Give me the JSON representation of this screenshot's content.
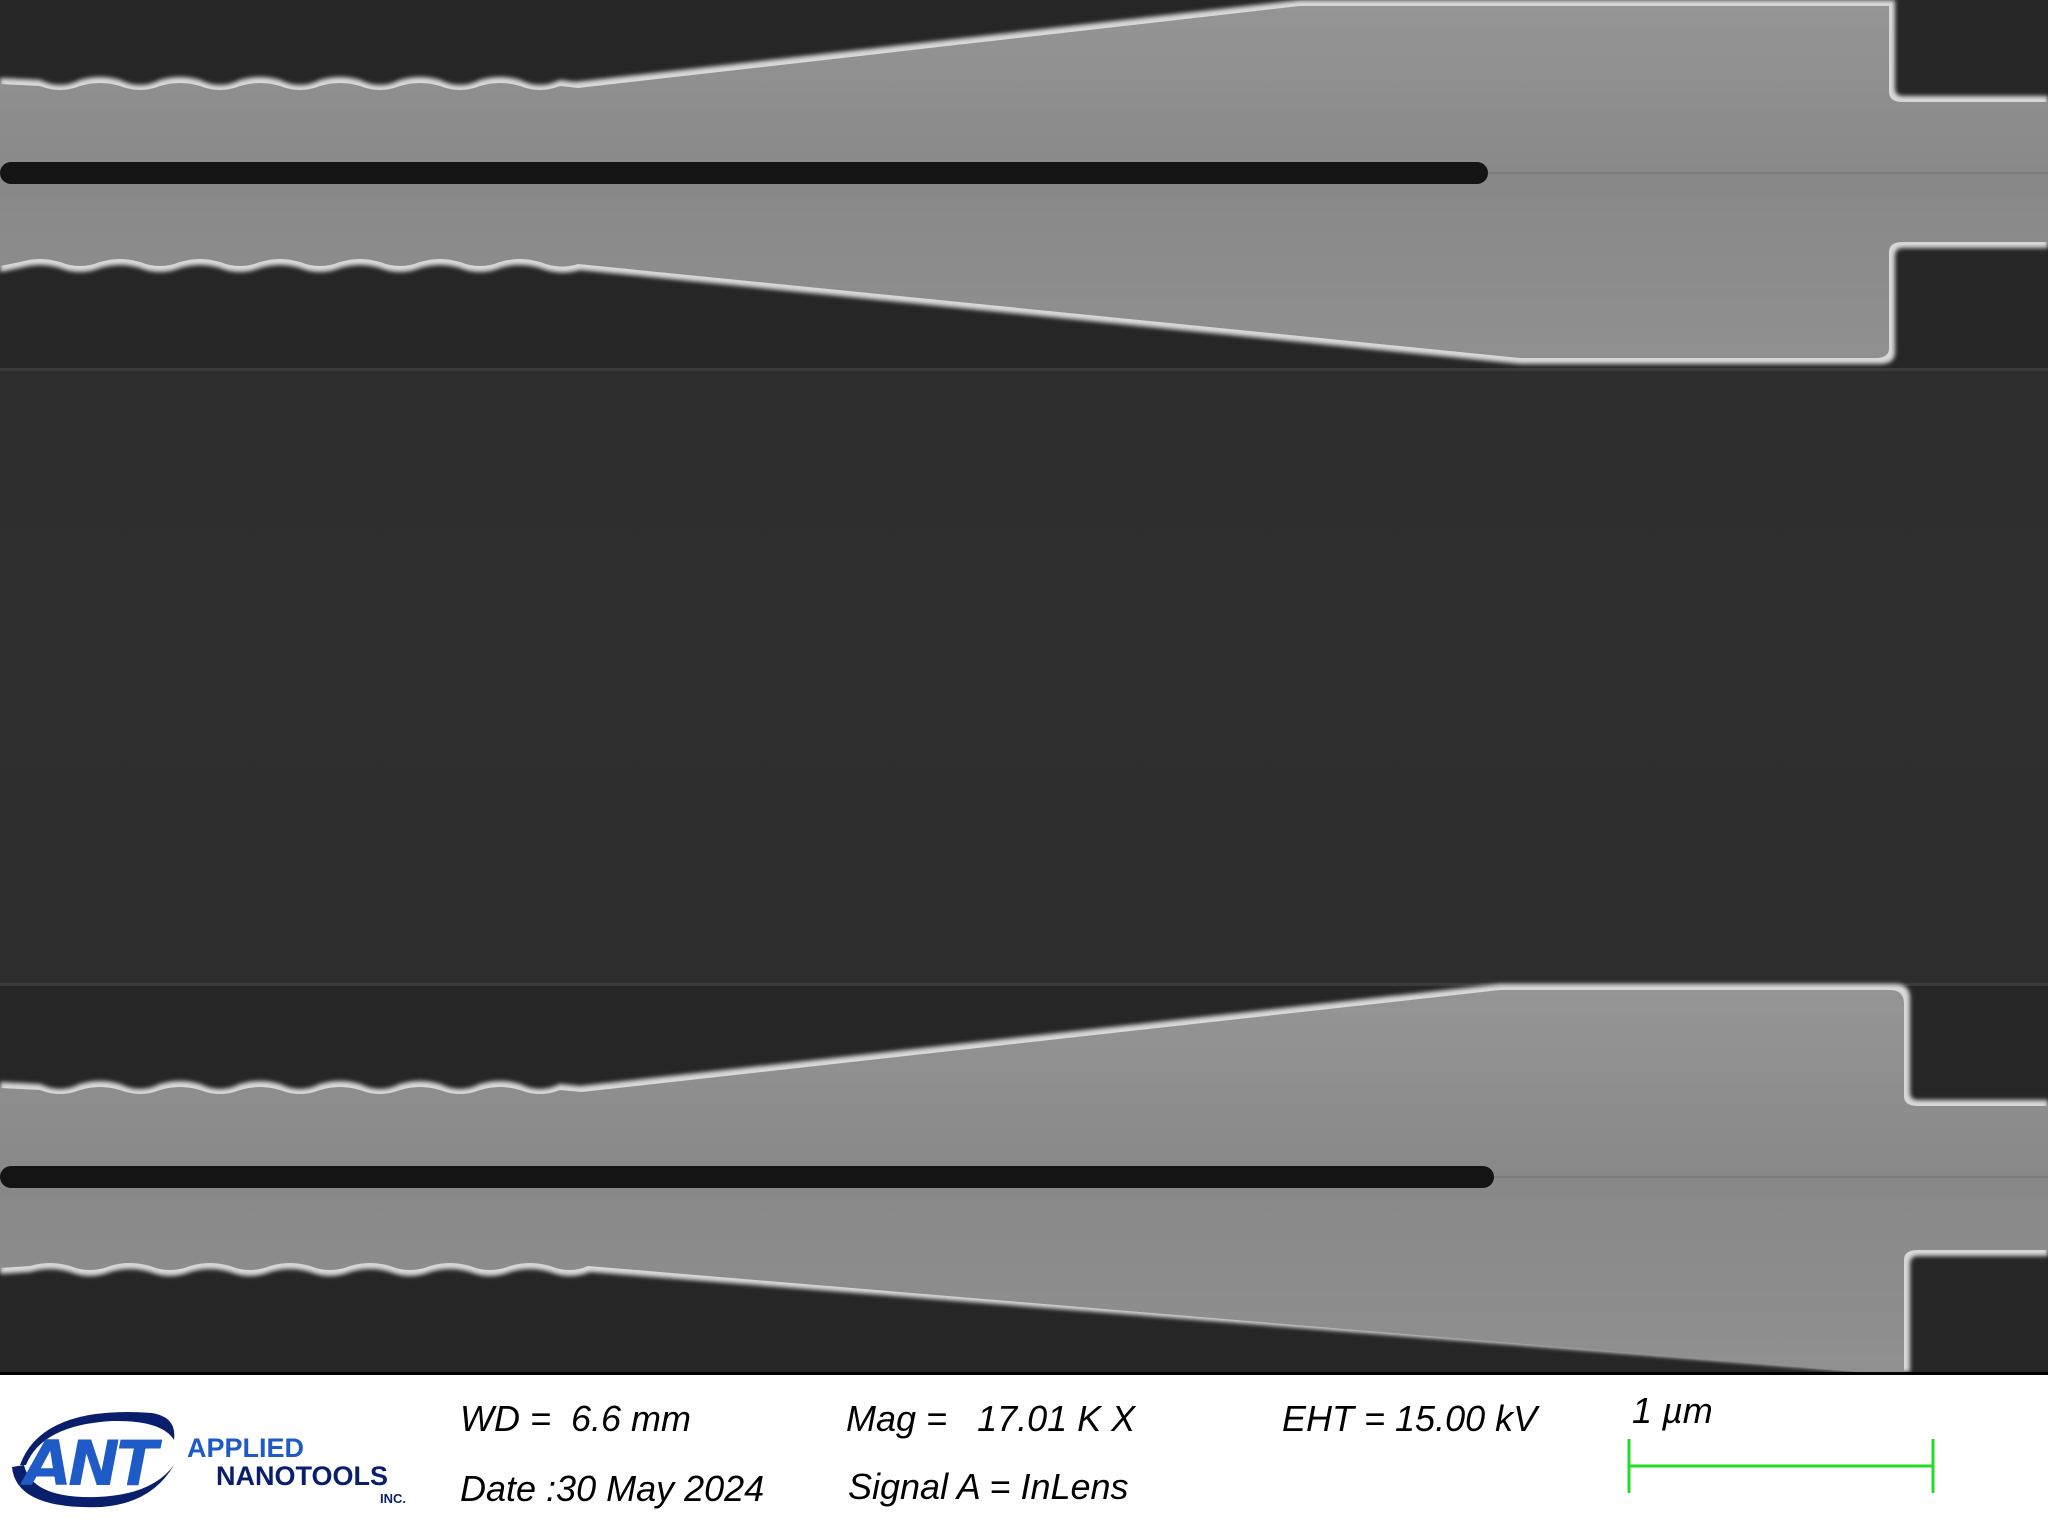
{
  "image": {
    "description_visible": "SEM micrograph",
    "colors": {
      "background": "#2b2b2b",
      "trench": "#252525",
      "waveguide": "#8a8a8a",
      "waveguide_edge": "#d8d8d8",
      "slot": "#141414",
      "scale_bar": "#22dd22",
      "logo_blue": "#1e5bc6",
      "logo_dark": "#0a1f6b"
    }
  },
  "info_bar": {
    "logo": {
      "mark": "ANT",
      "name_line1": "APPLIED",
      "name_line2": "NANOTOOLS",
      "suffix": "INC."
    },
    "wd": "WD =  6.6 mm",
    "date": "Date :30 May 2024",
    "mag": "Mag =   17.01 K X",
    "signal": "Signal A = InLens",
    "eht": "EHT = 15.00 kV",
    "scale_label": "1 µm"
  }
}
